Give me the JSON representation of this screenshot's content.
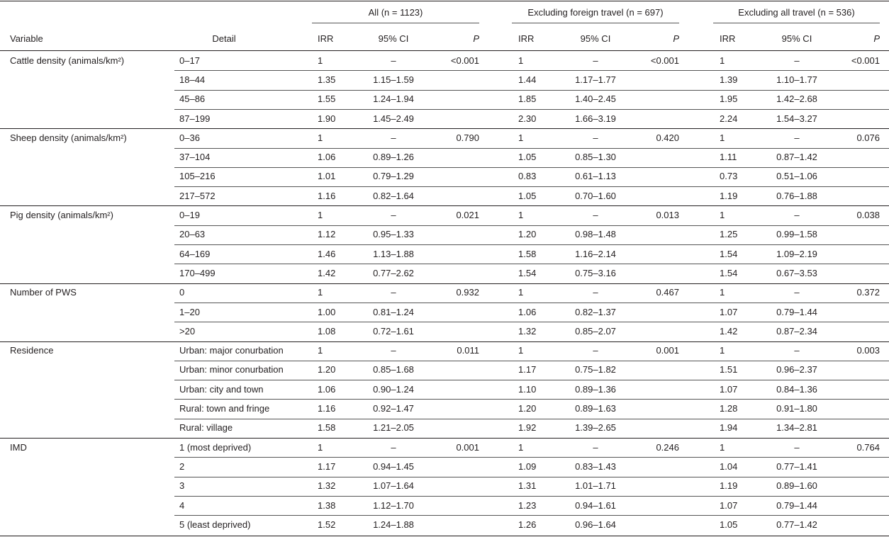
{
  "header": {
    "groups": [
      "All (n = 1123)",
      "Excluding foreign travel (n = 697)",
      "Excluding all travel (n = 536)"
    ],
    "columns": [
      "Variable",
      "Detail",
      "IRR",
      "95% CI",
      "P"
    ]
  },
  "table": {
    "sections": [
      {
        "variable": "Cattle density (animals/km²)",
        "p": [
          "<0.001",
          "<0.001",
          "<0.001"
        ],
        "rows": [
          [
            "0–17",
            "1",
            "–",
            "1",
            "–",
            "1",
            "–"
          ],
          [
            "18–44",
            "1.35",
            "1.15–1.59",
            "1.44",
            "1.17–1.77",
            "1.39",
            "1.10–1.77"
          ],
          [
            "45–86",
            "1.55",
            "1.24–1.94",
            "1.85",
            "1.40–2.45",
            "1.95",
            "1.42–2.68"
          ],
          [
            "87–199",
            "1.90",
            "1.45–2.49",
            "2.30",
            "1.66–3.19",
            "2.24",
            "1.54–3.27"
          ]
        ]
      },
      {
        "variable": "Sheep density (animals/km²)",
        "p": [
          "0.790",
          "0.420",
          "0.076"
        ],
        "rows": [
          [
            "0–36",
            "1",
            "–",
            "1",
            "–",
            "1",
            "–"
          ],
          [
            "37–104",
            "1.06",
            "0.89–1.26",
            "1.05",
            "0.85–1.30",
            "1.11",
            "0.87–1.42"
          ],
          [
            "105–216",
            "1.01",
            "0.79–1.29",
            "0.83",
            "0.61–1.13",
            "0.73",
            "0.51–1.06"
          ],
          [
            "217–572",
            "1.16",
            "0.82–1.64",
            "1.05",
            "0.70–1.60",
            "1.19",
            "0.76–1.88"
          ]
        ]
      },
      {
        "variable": "Pig density (animals/km²)",
        "p": [
          "0.021",
          "0.013",
          "0.038"
        ],
        "rows": [
          [
            "0–19",
            "1",
            "–",
            "1",
            "–",
            "1",
            "–"
          ],
          [
            "20–63",
            "1.12",
            "0.95–1.33",
            "1.20",
            "0.98–1.48",
            "1.25",
            "0.99–1.58"
          ],
          [
            "64–169",
            "1.46",
            "1.13–1.88",
            "1.58",
            "1.16–2.14",
            "1.54",
            "1.09–2.19"
          ],
          [
            "170–499",
            "1.42",
            "0.77–2.62",
            "1.54",
            "0.75–3.16",
            "1.54",
            "0.67–3.53"
          ]
        ]
      },
      {
        "variable": "Number of PWS",
        "p": [
          "0.932",
          "0.467",
          "0.372"
        ],
        "rows": [
          [
            "0",
            "1",
            "–",
            "1",
            "–",
            "1",
            "–"
          ],
          [
            "1–20",
            "1.00",
            "0.81–1.24",
            "1.06",
            "0.82–1.37",
            "1.07",
            "0.79–1.44"
          ],
          [
            ">20",
            "1.08",
            "0.72–1.61",
            "1.32",
            "0.85–2.07",
            "1.42",
            "0.87–2.34"
          ]
        ]
      },
      {
        "variable": "Residence",
        "p": [
          "0.011",
          "0.001",
          "0.003"
        ],
        "rows": [
          [
            "Urban: major conurbation",
            "1",
            "–",
            "1",
            "–",
            "1",
            "–"
          ],
          [
            "Urban: minor conurbation",
            "1.20",
            "0.85–1.68",
            "1.17",
            "0.75–1.82",
            "1.51",
            "0.96–2.37"
          ],
          [
            "Urban: city and town",
            "1.06",
            "0.90–1.24",
            "1.10",
            "0.89–1.36",
            "1.07",
            "0.84–1.36"
          ],
          [
            "Rural: town and fringe",
            "1.16",
            "0.92–1.47",
            "1.20",
            "0.89–1.63",
            "1.28",
            "0.91–1.80"
          ],
          [
            "Rural: village",
            "1.58",
            "1.21–2.05",
            "1.92",
            "1.39–2.65",
            "1.94",
            "1.34–2.81"
          ]
        ]
      },
      {
        "variable": "IMD",
        "p": [
          "0.001",
          "0.246",
          "0.764"
        ],
        "rows": [
          [
            "1 (most deprived)",
            "1",
            "–",
            "1",
            "–",
            "1",
            "–"
          ],
          [
            "2",
            "1.17",
            "0.94–1.45",
            "1.09",
            "0.83–1.43",
            "1.04",
            "0.77–1.41"
          ],
          [
            "3",
            "1.32",
            "1.07–1.64",
            "1.31",
            "1.01–1.71",
            "1.19",
            "0.89–1.60"
          ],
          [
            "4",
            "1.38",
            "1.12–1.70",
            "1.23",
            "0.94–1.61",
            "1.07",
            "0.79–1.44"
          ],
          [
            "5 (least deprived)",
            "1.52",
            "1.24–1.88",
            "1.26",
            "0.96–1.64",
            "1.05",
            "0.77–1.42"
          ]
        ]
      }
    ]
  }
}
